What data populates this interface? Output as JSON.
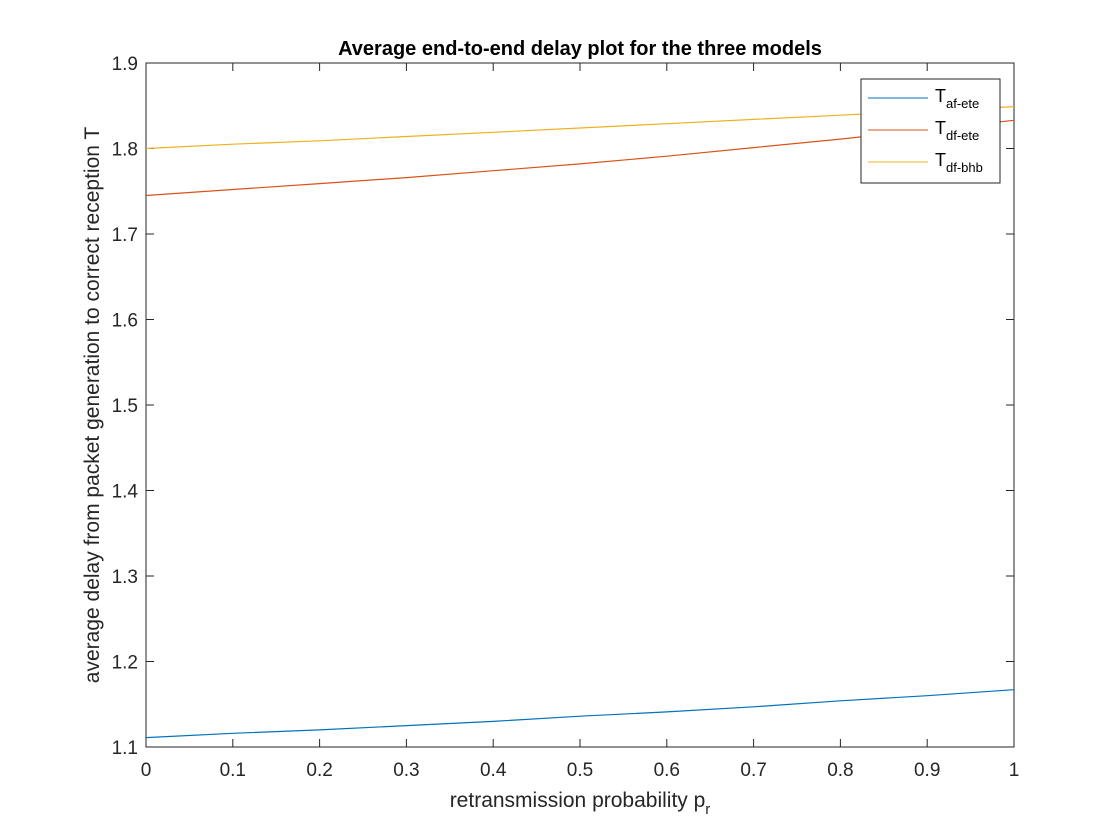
{
  "chart_data": {
    "type": "line",
    "title": "Average end-to-end delay plot for the three models",
    "xlabel": "retransmission probability p",
    "xlabel_sub": "r",
    "ylabel": "average delay from packet generation to correct reception T",
    "xlim": [
      0,
      1
    ],
    "ylim": [
      1.1,
      1.9
    ],
    "xticks": [
      0,
      0.1,
      0.2,
      0.3,
      0.4,
      0.5,
      0.6,
      0.7,
      0.8,
      0.9,
      1
    ],
    "xtick_labels": [
      "0",
      "0.1",
      "0.2",
      "0.3",
      "0.4",
      "0.5",
      "0.6",
      "0.7",
      "0.8",
      "0.9",
      "1"
    ],
    "yticks": [
      1.1,
      1.2,
      1.3,
      1.4,
      1.5,
      1.6,
      1.7,
      1.8,
      1.9
    ],
    "ytick_labels": [
      "1.1",
      "1.2",
      "1.3",
      "1.4",
      "1.5",
      "1.6",
      "1.7",
      "1.8",
      "1.9"
    ],
    "grid": false,
    "legend_position": "top-right",
    "x": [
      0,
      0.1,
      0.2,
      0.3,
      0.4,
      0.5,
      0.6,
      0.7,
      0.8,
      0.9,
      1
    ],
    "series": [
      {
        "name": "T",
        "name_sub": "af-ete",
        "color": "#0072BD",
        "values": [
          1.111,
          1.116,
          1.12,
          1.125,
          1.13,
          1.136,
          1.141,
          1.147,
          1.154,
          1.16,
          1.167
        ]
      },
      {
        "name": "T",
        "name_sub": "df-ete",
        "color": "#D95319",
        "values": [
          1.745,
          1.752,
          1.759,
          1.766,
          1.774,
          1.782,
          1.791,
          1.801,
          1.811,
          1.822,
          1.833
        ]
      },
      {
        "name": "T",
        "name_sub": "df-bhb",
        "color": "#EDB120",
        "values": [
          1.8,
          1.805,
          1.809,
          1.814,
          1.819,
          1.824,
          1.829,
          1.834,
          1.839,
          1.844,
          1.849
        ]
      }
    ]
  }
}
